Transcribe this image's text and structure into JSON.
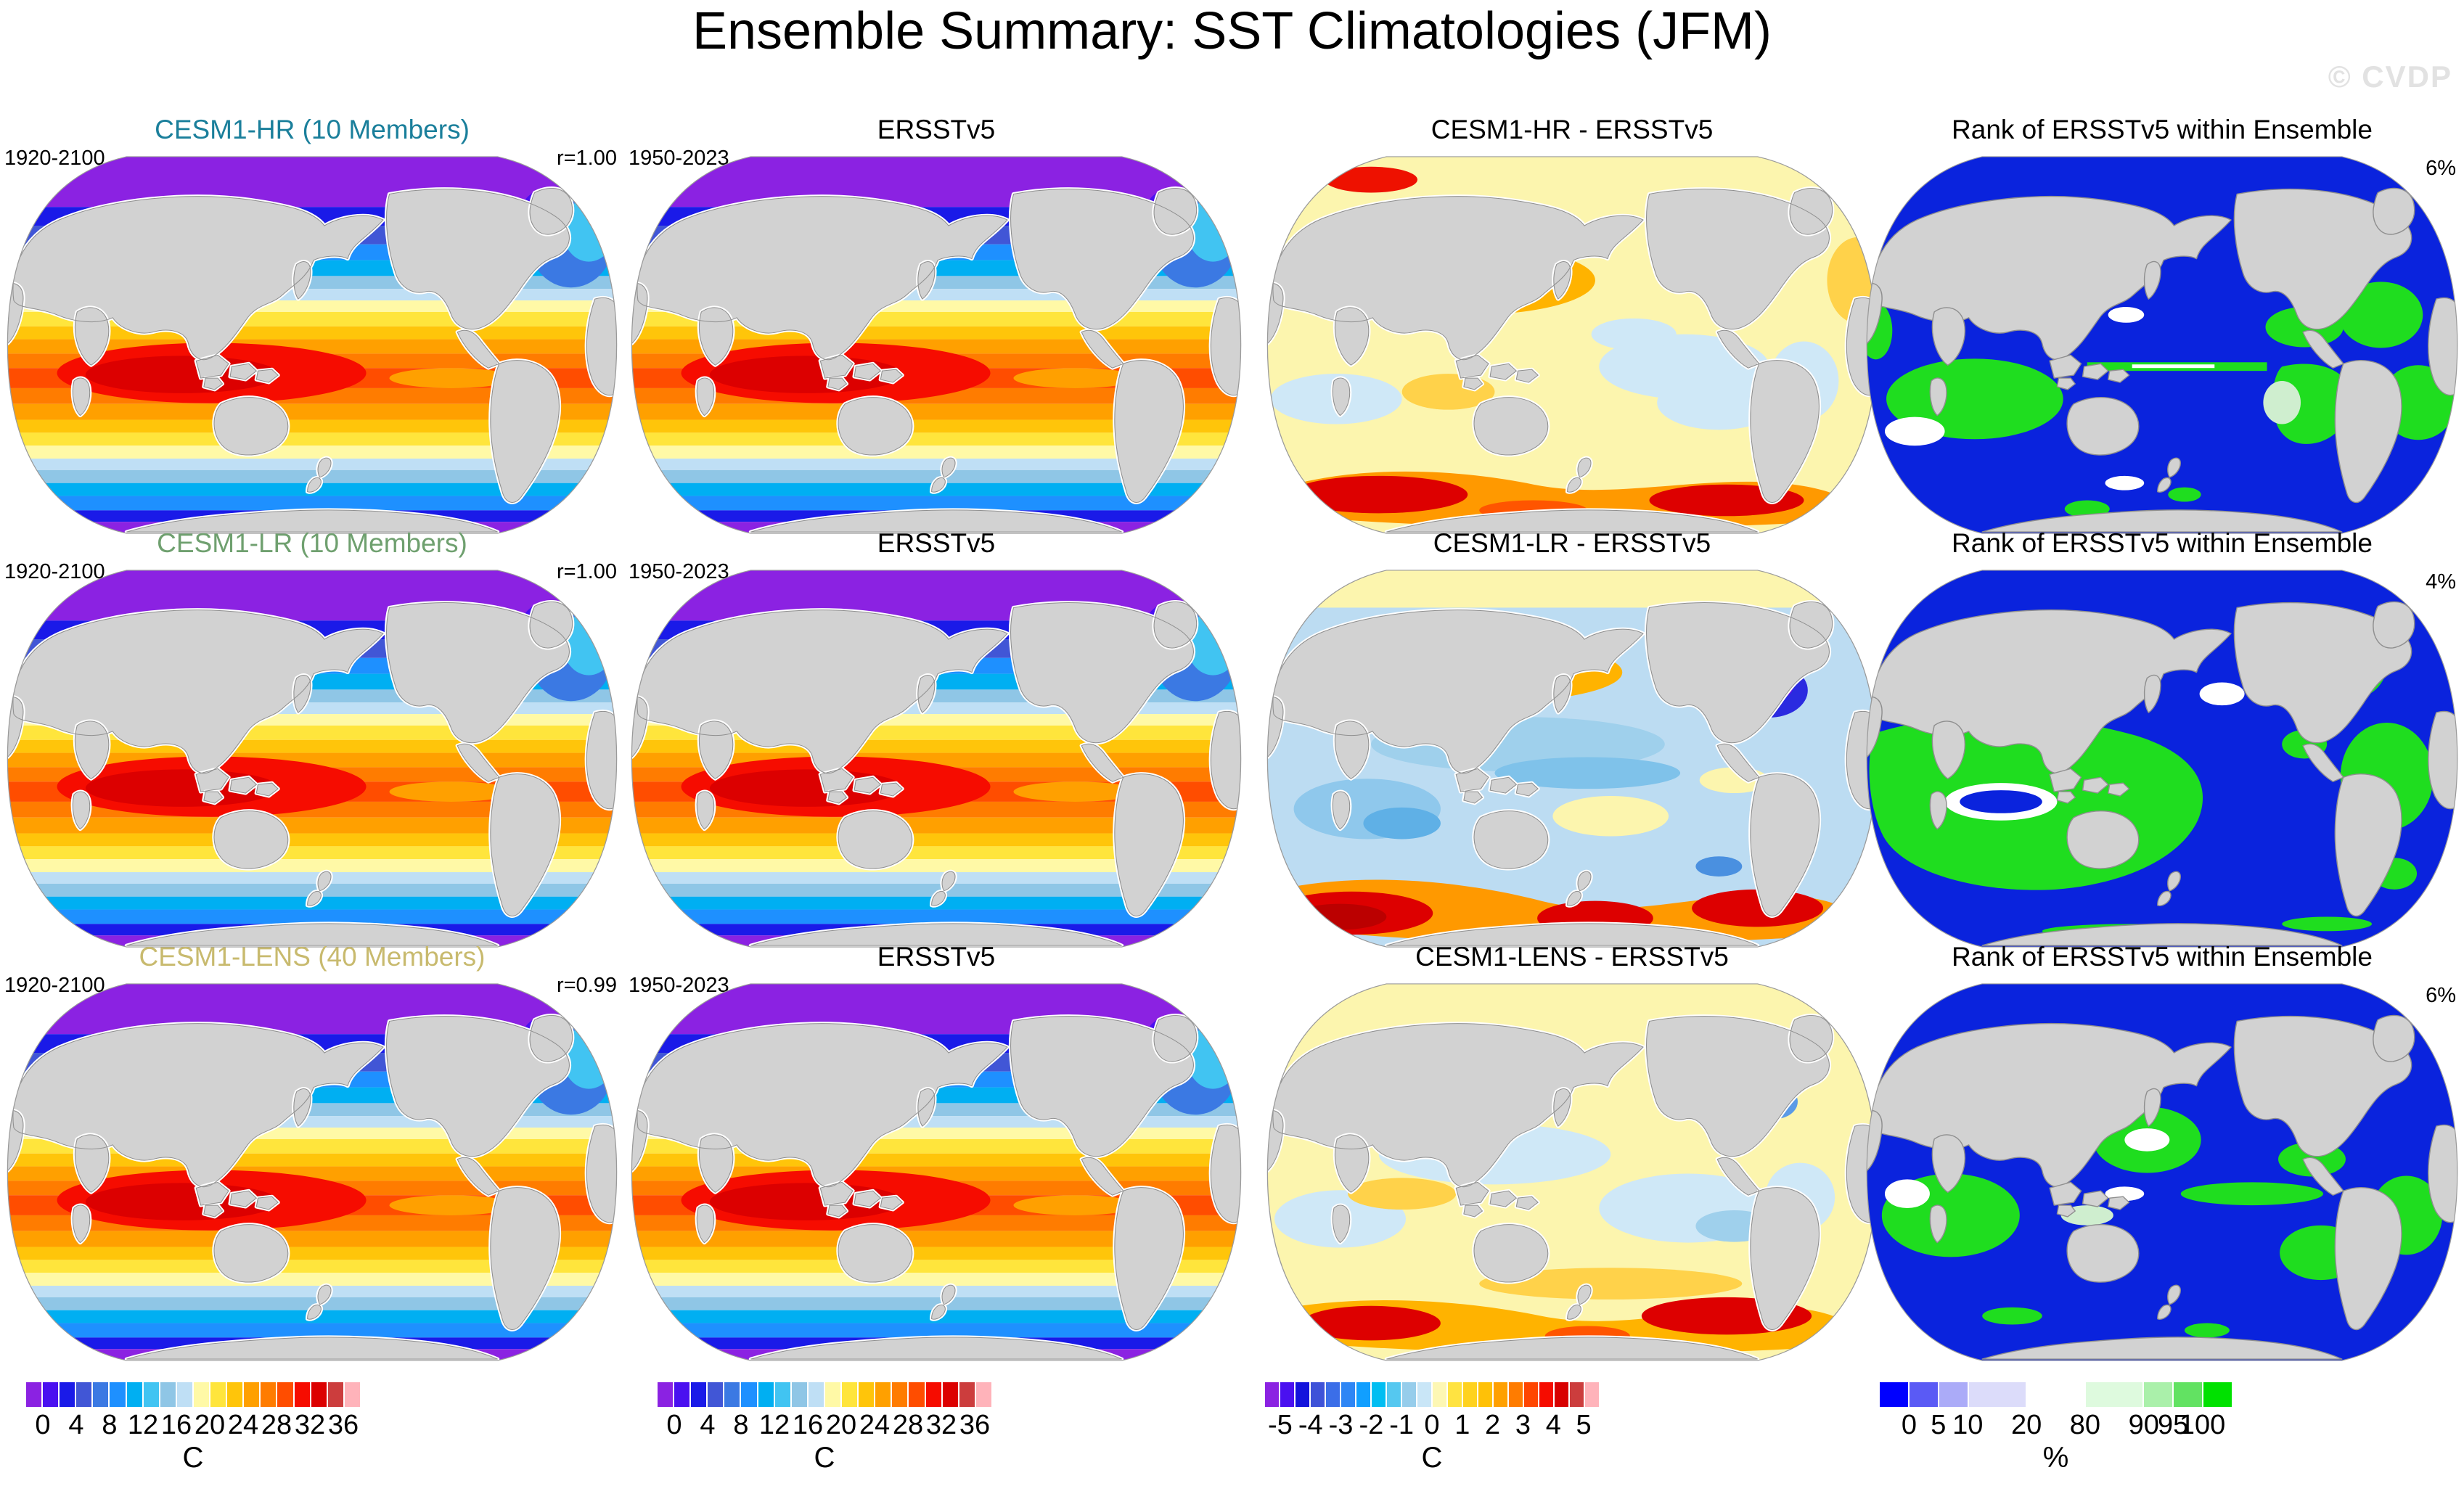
{
  "title": "Ensemble Summary: SST Climatologies (JFM)",
  "watermark": "© CVDP",
  "rows": [
    {
      "model": {
        "title": "CESM1-HR (10 Members)",
        "title_color": "#1a7f9b",
        "period": "1920-2100",
        "r_value": "r=1.00"
      },
      "obs": {
        "title": "ERSSTv5",
        "period": "1950-2023"
      },
      "diff": {
        "title": "CESM1-HR - ERSSTv5"
      },
      "rank": {
        "title": "Rank of ERSSTv5 within Ensemble",
        "percent": "6%"
      }
    },
    {
      "model": {
        "title": "CESM1-LR (10 Members)",
        "title_color": "#6fa06f",
        "period": "1920-2100",
        "r_value": "r=1.00"
      },
      "obs": {
        "title": "ERSSTv5",
        "period": "1950-2023"
      },
      "diff": {
        "title": "CESM1-LR - ERSSTv5"
      },
      "rank": {
        "title": "Rank of ERSSTv5 within Ensemble",
        "percent": "4%"
      }
    },
    {
      "model": {
        "title": "CESM1-LENS (40 Members)",
        "title_color": "#c8ba6e",
        "period": "1920-2100",
        "r_value": "r=0.99"
      },
      "obs": {
        "title": "ERSSTv5",
        "period": "1950-2023"
      },
      "diff": {
        "title": "CESM1-LENS - ERSSTv5"
      },
      "rank": {
        "title": "Rank of ERSSTv5 within Ensemble",
        "percent": "6%"
      }
    }
  ],
  "colorbars": {
    "sst": {
      "unit": "C",
      "ticks": [
        "0",
        "4",
        "8",
        "12",
        "16",
        "20",
        "24",
        "28",
        "32",
        "36"
      ],
      "colors": [
        "#8b22e2",
        "#4a10f0",
        "#1a1ae8",
        "#4156d6",
        "#3b79e3",
        "#1e90ff",
        "#00aff2",
        "#41c4f2",
        "#8fc6e6",
        "#bfdff5",
        "#fff9a6",
        "#ffe53c",
        "#ffc50a",
        "#ffa000",
        "#ff7c00",
        "#ff4d00",
        "#f60c00",
        "#dc0000",
        "#cc3d3d",
        "#ffb3ba"
      ]
    },
    "diff": {
      "unit": "C",
      "ticks": [
        "-5",
        "-4",
        "-3",
        "-2",
        "-1",
        "0",
        "1",
        "2",
        "3",
        "4",
        "5"
      ],
      "colors": [
        "#8b22e2",
        "#4a10f0",
        "#1313dc",
        "#3e52d8",
        "#3b6ee8",
        "#2e86f5",
        "#119fff",
        "#00bef2",
        "#55c8f0",
        "#96cdeb",
        "#c9e6f7",
        "#fdf7b4",
        "#ffe341",
        "#ffd21e",
        "#ffc107",
        "#ffa000",
        "#ff7c00",
        "#ff4500",
        "#f60c00",
        "#d80000",
        "#cc3d3d",
        "#ffb3ba"
      ]
    },
    "rank": {
      "unit": "%",
      "ticks": [
        "0",
        "5",
        "10",
        "20",
        "80",
        "90",
        "95",
        "100"
      ],
      "colors": [
        "#0000ff",
        "#5a5af5",
        "#ababf8",
        "#dcdcfa",
        "#ffffff",
        "#defade",
        "#aaf0aa",
        "#62e262",
        "#00e100"
      ],
      "widths": [
        1,
        1,
        1,
        2,
        2,
        2,
        1,
        1,
        1
      ]
    }
  },
  "map_colors": {
    "land": "#d2d2d2",
    "coastline": "#8f8f8f",
    "ocean_halo": "#ffffff",
    "rank_blue": "#0a23dd",
    "rank_green": "#1fdd1f",
    "rank_pale_green": "#cfeecf",
    "diff_warm_base": "#fcf5ae",
    "diff_cool_base": "#bcdcf2"
  },
  "chart_data": {
    "type": "heatmap",
    "title": "Ensemble Summary: SST Climatologies (JFM)",
    "grid": "3 rows x 4 columns of Pacific-centered global maps",
    "columns": [
      "Model ensemble-mean SST climatology",
      "ERSSTv5 observed SST climatology",
      "Model minus ERSSTv5 difference",
      "Rank of ERSSTv5 within ensemble"
    ],
    "rows": [
      {
        "model": "CESM1-HR",
        "members": 10,
        "model_period": "1920-2100",
        "obs": "ERSSTv5",
        "obs_period": "1950-2023",
        "pattern_correlation": 1.0,
        "rank_percent": 6
      },
      {
        "model": "CESM1-LR",
        "members": 10,
        "model_period": "1920-2100",
        "obs": "ERSSTv5",
        "obs_period": "1950-2023",
        "pattern_correlation": 1.0,
        "rank_percent": 4
      },
      {
        "model": "CESM1-LENS",
        "members": 40,
        "model_period": "1920-2100",
        "obs": "ERSSTv5",
        "obs_period": "1950-2023",
        "pattern_correlation": 0.99,
        "rank_percent": 6
      }
    ],
    "scales": [
      {
        "name": "SST climatology",
        "unit": "C",
        "tick_values": [
          0,
          4,
          8,
          12,
          16,
          20,
          24,
          28,
          32,
          36
        ],
        "segments": 20
      },
      {
        "name": "SST difference",
        "unit": "C",
        "tick_values": [
          -5,
          -4,
          -3,
          -2,
          -1,
          0,
          1,
          2,
          3,
          4,
          5
        ],
        "segments": 22
      },
      {
        "name": "Rank of observations",
        "unit": "%",
        "tick_values": [
          0,
          5,
          10,
          20,
          80,
          90,
          95,
          100
        ],
        "segments": 9
      }
    ],
    "legend_position": "bottom",
    "notes": "SST maps: purple polar bands through blue/cyan mid-latitudes to red equatorial maximum; difference maps mostly within ±1 C with largest positive errors in the Southern Ocean and North Atlantic; rank maps mostly blue (low rank) with green (high rank) patches."
  }
}
